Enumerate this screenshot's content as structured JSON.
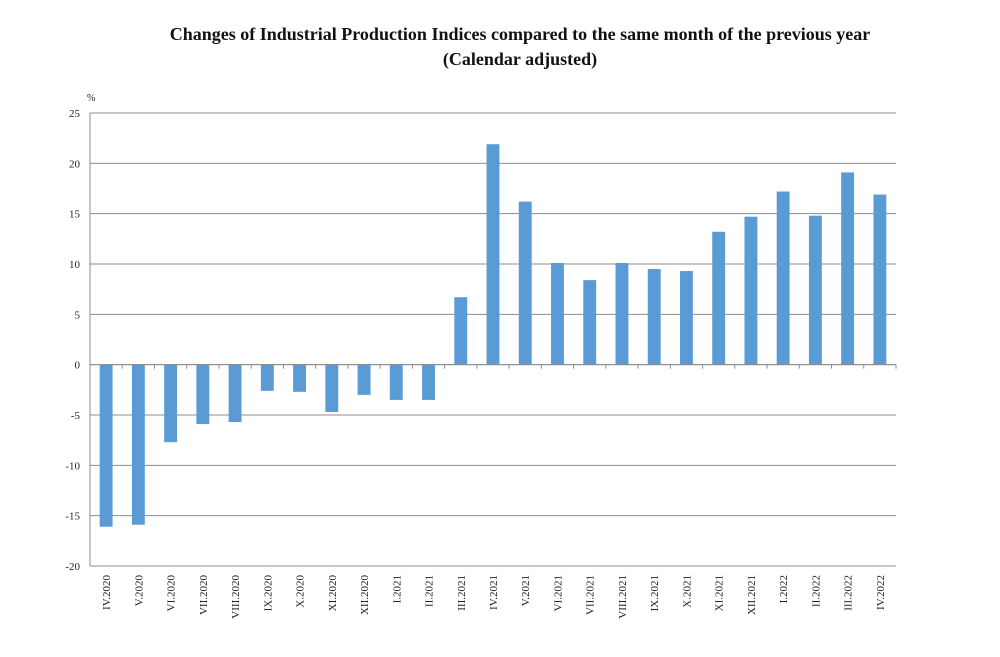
{
  "chart_data": {
    "type": "bar",
    "title_line1": "Changes of Industrial Production Indices compared to the same month of the previous year",
    "title_line2": "(Calendar adjusted)",
    "ylabel": "%",
    "xlabel": "",
    "ylim": [
      -20,
      25
    ],
    "ytick_step": 5,
    "grid": true,
    "legend": "none",
    "bar_color": "#5b9bd5",
    "categories": [
      "IV.2020",
      "V.2020",
      "VI.2020",
      "VII.2020",
      "VIII.2020",
      "IX.2020",
      "X.2020",
      "XI.2020",
      "XII.2020",
      "I.2021",
      "II.2021",
      "III.2021",
      "IV.2021",
      "V.2021",
      "VI.2021",
      "VII.2021",
      "VIII.2021",
      "IX.2021",
      "X.2021",
      "XI.2021",
      "XII.2021",
      "I.2022",
      "II.2022",
      "III.2022",
      "IV.2022"
    ],
    "values": [
      -16.1,
      -15.9,
      -7.7,
      -5.9,
      -5.7,
      -2.6,
      -2.7,
      -4.7,
      -3.0,
      -3.5,
      -3.5,
      6.7,
      21.9,
      16.2,
      10.1,
      8.4,
      10.1,
      9.5,
      9.3,
      13.2,
      14.7,
      17.2,
      14.8,
      19.1,
      16.9
    ]
  }
}
